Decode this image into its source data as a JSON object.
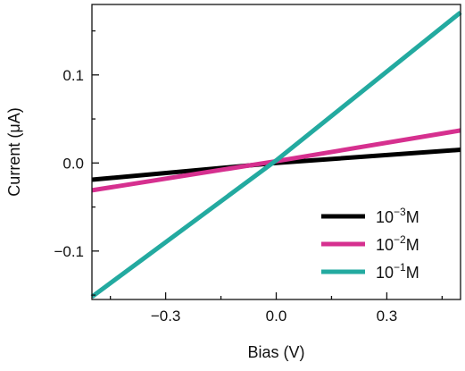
{
  "chart_data": {
    "type": "line",
    "xlabel": "Bias (V)",
    "ylabel": "Current (μA)",
    "xlim": [
      -0.5,
      0.5
    ],
    "ylim": [
      -0.155,
      0.18
    ],
    "x_ticks": [
      -0.3,
      0.0,
      0.3
    ],
    "x_tick_labels": [
      "−0.3",
      "0.0",
      "0.3"
    ],
    "x_minor_ticks": [
      -0.45,
      -0.15,
      0.15,
      0.45
    ],
    "y_ticks": [
      -0.1,
      0.0,
      0.1
    ],
    "y_tick_labels": [
      "−0.1",
      "0.0",
      "0.1"
    ],
    "y_minor_ticks": [
      -0.15,
      -0.05,
      0.05,
      0.15
    ],
    "grid": false,
    "legend_position": "lower-right",
    "series": [
      {
        "name_base": "10",
        "name_exp": "−3",
        "name_unit": "M",
        "color": "#000000",
        "x": [
          -0.5,
          0.0,
          0.5
        ],
        "y": [
          -0.019,
          0.0,
          0.015
        ]
      },
      {
        "name_base": "10",
        "name_exp": "−2",
        "name_unit": "M",
        "color": "#d6308f",
        "x": [
          -0.5,
          0.0,
          0.5
        ],
        "y": [
          -0.031,
          0.002,
          0.037
        ]
      },
      {
        "name_base": "10",
        "name_exp": "−1",
        "name_unit": "M",
        "color": "#23aaa0",
        "x": [
          -0.5,
          0.0,
          0.5
        ],
        "y": [
          -0.152,
          0.003,
          0.171
        ]
      }
    ]
  }
}
